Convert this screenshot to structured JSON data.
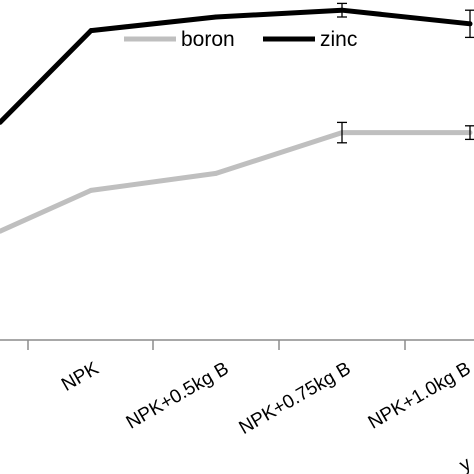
{
  "chart_data": {
    "type": "line",
    "categories": [
      "",
      "NPK",
      "NPK+0.5kg B",
      "NPK+0.75kg B",
      "NPK+1.0kg B"
    ],
    "y_range": [
      0,
      100
    ],
    "legend_position": "top-center",
    "grid": false,
    "series": [
      {
        "name": "boron",
        "color": "#bfbfbf",
        "values": [
          32,
          44,
          49,
          61,
          61
        ],
        "errors": [
          null,
          null,
          null,
          3,
          2
        ]
      },
      {
        "name": "zinc",
        "color": "#000000",
        "values": [
          64,
          91,
          95,
          97,
          93
        ],
        "errors": [
          null,
          null,
          null,
          2,
          4
        ]
      }
    ],
    "partial_tick_glyph": "y"
  }
}
